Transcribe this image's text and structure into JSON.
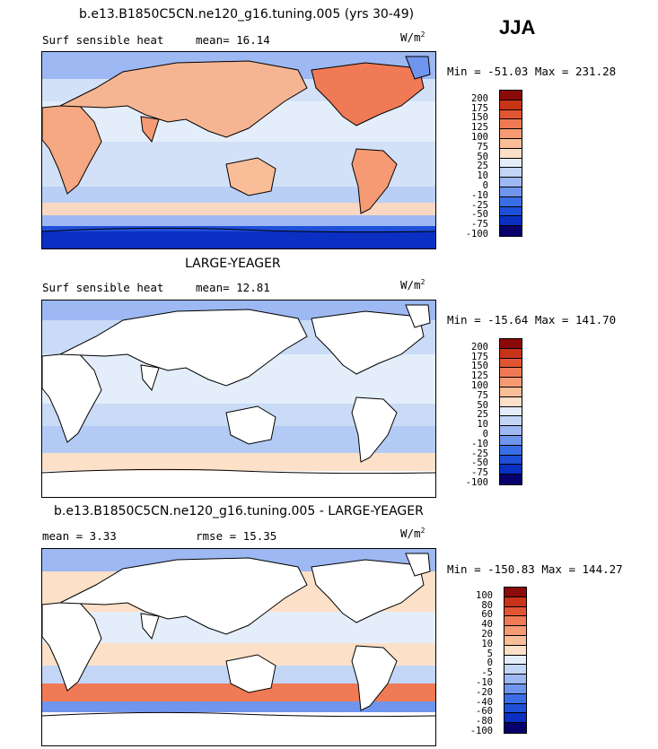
{
  "season": "JJA",
  "units": "W/m",
  "units_sup": "2",
  "colors": {
    "abs_scale": [
      "#08006b",
      "#0a2fc2",
      "#1e4fd8",
      "#3a6ee6",
      "#6f95ee",
      "#9db8f2",
      "#c3d6f6",
      "#e4eefb",
      "#fde0c8",
      "#f9bd98",
      "#f59a73",
      "#f07a55",
      "#e25532",
      "#c83418",
      "#8b0a0a"
    ],
    "diff_scale": [
      "#08006b",
      "#0a2fc2",
      "#1e4fd8",
      "#3a6ee6",
      "#6f95ee",
      "#9db8f2",
      "#c3d6f6",
      "#e4eefb",
      "#fde0c8",
      "#f9bd98",
      "#f59a73",
      "#f07a55",
      "#e25532",
      "#c83418",
      "#8b0a0a"
    ],
    "land": "#ffffff",
    "ocean_base": "#d6e4f8"
  },
  "panels": [
    {
      "title": "b.e13.B1850C5CN.ne120_g16.tuning.005 (yrs 30-49)",
      "left_label": "Surf sensible heat",
      "mean_label": "mean=  16.14",
      "minmax": "Min = -51.03 Max = 231.28",
      "ticks": [
        "200",
        "175",
        "150",
        "125",
        "100",
        "75",
        "50",
        "25",
        "10",
        "0",
        "-10",
        "-25",
        "-50",
        "-75",
        "-100"
      ]
    },
    {
      "title": "LARGE-YEAGER",
      "left_label": "Surf sensible heat",
      "mean_label": "mean=  12.81",
      "minmax": "Min = -15.64 Max = 141.70",
      "ticks": [
        "200",
        "175",
        "150",
        "125",
        "100",
        "75",
        "50",
        "25",
        "10",
        "0",
        "-10",
        "-25",
        "-50",
        "-75",
        "-100"
      ]
    },
    {
      "title": "b.e13.B1850C5CN.ne120_g16.tuning.005 - LARGE-YEAGER",
      "left_label": "mean =   3.33",
      "mean_label": "rmse =  15.35",
      "minmax": "Min = -150.83 Max = 144.27",
      "ticks": [
        "100",
        "80",
        "60",
        "40",
        "20",
        "10",
        "5",
        "0",
        "-5",
        "-10",
        "-20",
        "-40",
        "-60",
        "-80",
        "-100"
      ]
    }
  ]
}
